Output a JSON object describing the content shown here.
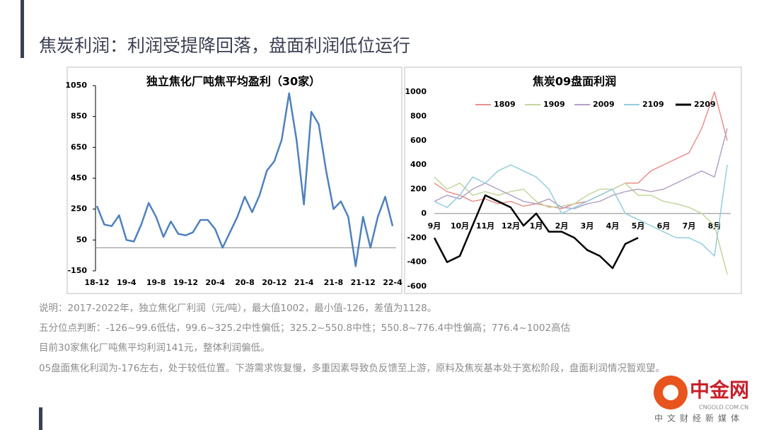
{
  "title": "焦炭利润：利润受提降回落，盘面利润低位运行",
  "notes": [
    "说明：2017-2022年，独立焦化厂利润（元/吨），最大值1002，最小值-126，差值为1128。",
    "五分位点判断：-126~99.6低估，99.6~325.2中性偏低；325.2~550.8中性；550.8~776.4中性偏高；776.4~1002高估",
    "目前30家焦化厂吨焦平均利润141元，整体利润偏低。",
    "05盘面焦化利润为-176左右，处于较低位置。下游需求恢复慢，多重因素导致负反馈至上游，原料及焦炭基本处于宽松阶段，盘面利润情况暂观望。"
  ],
  "logo": {
    "name": "中金网",
    "site": "CNGOLD.COM.CN",
    "slogan": "中文财经新媒体"
  },
  "chart_data": [
    {
      "type": "line",
      "title": "独立焦化厂吨焦平均盈利（30家）",
      "categories": [
        "18-12",
        null,
        null,
        null,
        "19-4",
        null,
        null,
        null,
        "19-8",
        null,
        null,
        null,
        "19-12",
        null,
        null,
        null,
        "20-4",
        null,
        null,
        null,
        "20-8",
        null,
        null,
        null,
        "20-12",
        null,
        null,
        null,
        "21-4",
        null,
        null,
        null,
        "21-8",
        null,
        null,
        null,
        "21-12",
        null,
        null,
        null,
        "22-4"
      ],
      "values": [
        270,
        150,
        140,
        210,
        50,
        40,
        150,
        290,
        200,
        70,
        170,
        90,
        80,
        100,
        180,
        180,
        120,
        0,
        100,
        200,
        330,
        230,
        340,
        500,
        560,
        700,
        1000,
        700,
        280,
        880,
        800,
        500,
        250,
        300,
        200,
        -120,
        200,
        0,
        200,
        330,
        140
      ],
      "color": "#4f81bd",
      "ylim": [
        -150,
        1050
      ],
      "yticks": [
        -150,
        50,
        250,
        450,
        650,
        850,
        1050
      ]
    },
    {
      "type": "line",
      "title": "焦炭09盘面利润",
      "categories": [
        "9月",
        null,
        "10月",
        null,
        "11月",
        null,
        "12月",
        null,
        "1月",
        null,
        "2月",
        null,
        "3月",
        null,
        "4月",
        null,
        "5月",
        null,
        "6月",
        null,
        "7月",
        null,
        "8月",
        null
      ],
      "ylim": [
        -600,
        1000
      ],
      "yticks": [
        -600,
        -400,
        -200,
        0,
        200,
        400,
        600,
        800,
        1000
      ],
      "legend": "top",
      "series": [
        {
          "name": "1809",
          "color": "#e8908c",
          "values": [
            250,
            180,
            150,
            100,
            120,
            80,
            100,
            60,
            80,
            60,
            40,
            80,
            100,
            150,
            200,
            250,
            250,
            350,
            400,
            450,
            500,
            700,
            1000,
            600
          ]
        },
        {
          "name": "1909",
          "color": "#c3d69b",
          "values": [
            300,
            200,
            250,
            150,
            180,
            150,
            180,
            200,
            100,
            50,
            60,
            80,
            150,
            200,
            200,
            250,
            150,
            150,
            100,
            80,
            50,
            0,
            -100,
            -500
          ]
        },
        {
          "name": "2009",
          "color": "#b3a2c7",
          "values": [
            100,
            150,
            120,
            200,
            250,
            200,
            150,
            100,
            80,
            120,
            50,
            40,
            80,
            100,
            150,
            180,
            200,
            180,
            200,
            250,
            300,
            350,
            300,
            700
          ]
        },
        {
          "name": "2109",
          "color": "#93cddd",
          "values": [
            100,
            50,
            150,
            300,
            250,
            350,
            400,
            350,
            300,
            200,
            0,
            50,
            100,
            150,
            200,
            0,
            -50,
            -100,
            -150,
            -200,
            -200,
            -250,
            -350,
            400
          ]
        },
        {
          "name": "2209",
          "color": "#000000",
          "values": [
            -200,
            -400,
            -350,
            -100,
            150,
            100,
            50,
            -100,
            0,
            -150,
            -150,
            -200,
            -300,
            -350,
            -450,
            -250,
            -200,
            null,
            null,
            null,
            null,
            null,
            null,
            null
          ]
        }
      ]
    }
  ]
}
